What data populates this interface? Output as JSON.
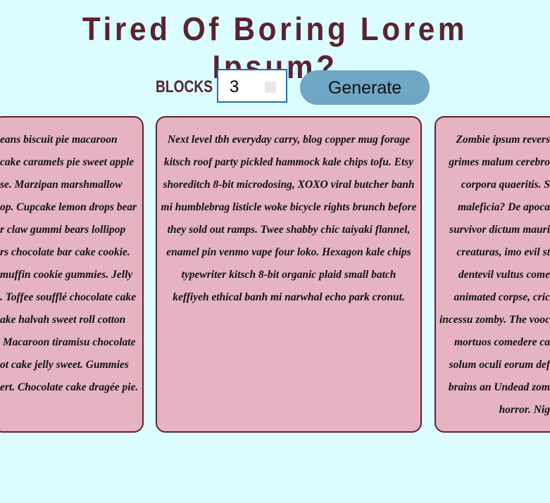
{
  "header": {
    "title": "Tired Of Boring Lorem Ipsum?"
  },
  "controls": {
    "label": "BLOCKS :",
    "input_value": "3",
    "button": "Generate"
  },
  "cards": [
    {
      "lines": [
        "eans biscuit pie macaroon",
        "cake caramels pie sweet apple",
        "se. Marzipan marshmallow",
        "op. Cupcake lemon drops bear",
        "r claw gummi bears lollipop",
        "rs chocolate bar cake cookie.",
        "muffin cookie gummies. Jelly",
        ". Toffee soufflé chocolate cake",
        "ake halvah sweet roll cotton",
        " Macaroon tiramisu chocolate",
        "ot cake jelly sweet. Gummies",
        "ert. Chocolate cake dragée pie."
      ]
    },
    {
      "lines": [
        "Next level tbh everyday carry, blog copper mug forage",
        "kitsch roof party pickled hammock kale chips tofu. Etsy",
        "shoreditch 8-bit microdosing, XOXO viral butcher banh",
        "mi humblebrag listicle woke bicycle rights brunch before",
        "they sold out ramps. Twee shabby chic taiyaki flannel,",
        "enamel pin venmo vape four loko. Hexagon kale chips",
        "typewriter kitsch 8-bit organic plaid small batch",
        "keffiyeh ethical banh mi narwhal echo park cronut."
      ]
    },
    {
      "lines": [
        "Zombie ipsum revers",
        "grimes malum cerebro",
        "corpora quaeritis. S",
        "maleficia? De apoca",
        "survivor dictum mauri",
        "creaturas, imo evil st",
        "dentevil vultus come",
        "animated corpse, cric",
        "incessu zomby. The vooc",
        "mortuos comedere ca",
        "solum oculi eorum def",
        "brains an Undead zom",
        "horror. Nig"
      ]
    }
  ]
}
